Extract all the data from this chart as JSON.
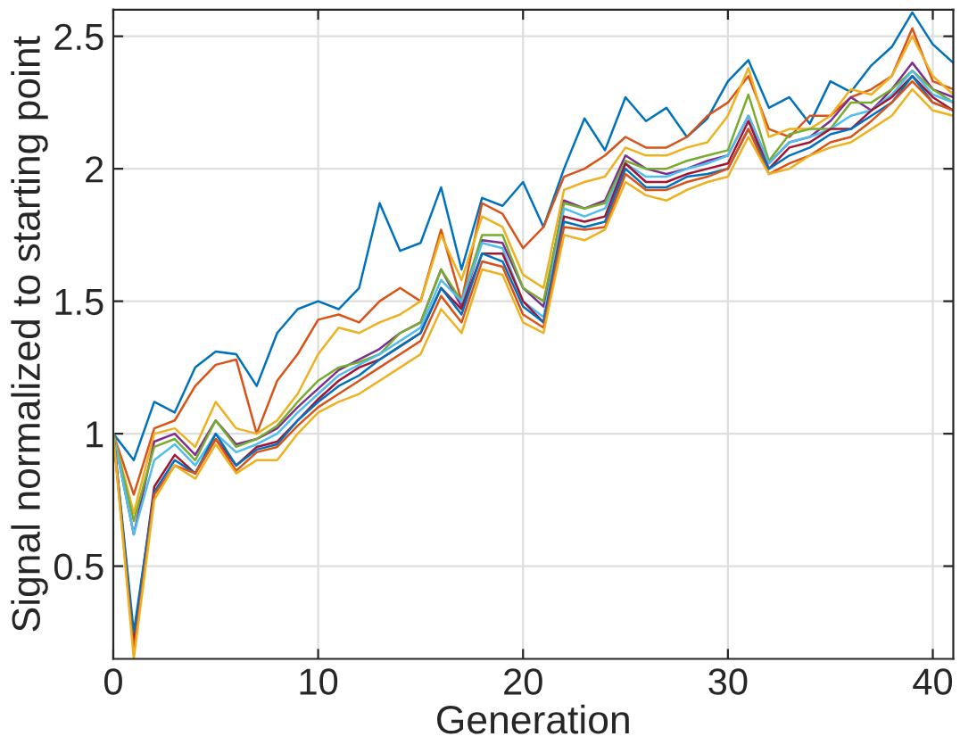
{
  "chart_data": {
    "type": "line",
    "xlabel": "Generation",
    "ylabel": "Signal normalized to starting point",
    "x": [
      0,
      1,
      2,
      3,
      4,
      5,
      6,
      7,
      8,
      9,
      10,
      11,
      12,
      13,
      14,
      15,
      16,
      17,
      18,
      19,
      20,
      21,
      22,
      23,
      24,
      25,
      26,
      27,
      28,
      29,
      30,
      31,
      32,
      33,
      34,
      35,
      36,
      37,
      38,
      39,
      40,
      41
    ],
    "xlim": [
      0,
      41
    ],
    "ylim": [
      0.15,
      2.6
    ],
    "xticks": [
      0,
      10,
      20,
      30,
      40
    ],
    "yticks": [
      0.5,
      1,
      1.5,
      2,
      2.5
    ],
    "grid": true,
    "marker": "none",
    "line_style": "solid",
    "series": [
      {
        "color": "#0072bd",
        "values": [
          1.0,
          0.9,
          1.12,
          1.08,
          1.25,
          1.31,
          1.3,
          1.18,
          1.38,
          1.47,
          1.5,
          1.47,
          1.55,
          1.87,
          1.69,
          1.72,
          1.93,
          1.62,
          1.89,
          1.86,
          1.95,
          1.78,
          2.0,
          2.19,
          2.07,
          2.27,
          2.18,
          2.23,
          2.12,
          2.19,
          2.33,
          2.41,
          2.23,
          2.27,
          2.17,
          2.33,
          2.29,
          2.39,
          2.46,
          2.59,
          2.47,
          2.4
        ]
      },
      {
        "color": "#d95319",
        "values": [
          1.0,
          0.77,
          1.02,
          1.05,
          1.18,
          1.26,
          1.28,
          1.0,
          1.2,
          1.3,
          1.43,
          1.45,
          1.42,
          1.5,
          1.55,
          1.5,
          1.77,
          1.5,
          1.87,
          1.83,
          1.7,
          1.78,
          1.97,
          2.0,
          2.05,
          2.12,
          2.08,
          2.08,
          2.12,
          2.2,
          2.25,
          2.35,
          2.15,
          2.12,
          2.2,
          2.2,
          2.27,
          2.3,
          2.35,
          2.53,
          2.33,
          2.3
        ]
      },
      {
        "color": "#edb120",
        "values": [
          1.0,
          0.7,
          1.0,
          1.02,
          0.95,
          1.12,
          1.02,
          1.0,
          1.05,
          1.15,
          1.3,
          1.4,
          1.38,
          1.42,
          1.45,
          1.5,
          1.75,
          1.58,
          1.82,
          1.78,
          1.6,
          1.55,
          1.92,
          1.95,
          1.97,
          2.08,
          2.05,
          2.05,
          2.08,
          2.1,
          2.2,
          2.38,
          2.12,
          2.15,
          2.15,
          2.2,
          2.3,
          2.28,
          2.35,
          2.5,
          2.35,
          2.28
        ]
      },
      {
        "color": "#7e2f8e",
        "values": [
          1.0,
          0.62,
          0.97,
          1.0,
          0.92,
          1.05,
          0.96,
          0.98,
          1.02,
          1.1,
          1.17,
          1.24,
          1.28,
          1.32,
          1.38,
          1.42,
          1.62,
          1.48,
          1.73,
          1.72,
          1.55,
          1.48,
          1.88,
          1.85,
          1.88,
          2.05,
          2.0,
          1.98,
          2.0,
          2.03,
          2.05,
          2.2,
          2.02,
          2.1,
          2.12,
          2.18,
          2.27,
          2.22,
          2.3,
          2.4,
          2.3,
          2.27
        ]
      },
      {
        "color": "#77ac30",
        "values": [
          1.0,
          0.67,
          0.95,
          0.98,
          0.9,
          1.05,
          0.95,
          0.98,
          1.03,
          1.12,
          1.2,
          1.25,
          1.27,
          1.3,
          1.38,
          1.42,
          1.62,
          1.5,
          1.75,
          1.75,
          1.55,
          1.5,
          1.87,
          1.85,
          1.87,
          2.03,
          2.0,
          2.0,
          2.03,
          2.05,
          2.07,
          2.28,
          2.03,
          2.13,
          2.15,
          2.15,
          2.25,
          2.25,
          2.3,
          2.37,
          2.3,
          2.25
        ]
      },
      {
        "color": "#4dbeee",
        "values": [
          1.0,
          0.62,
          0.9,
          0.96,
          0.88,
          1.0,
          0.93,
          0.96,
          1.0,
          1.08,
          1.15,
          1.22,
          1.26,
          1.3,
          1.35,
          1.4,
          1.58,
          1.5,
          1.72,
          1.7,
          1.5,
          1.44,
          1.85,
          1.82,
          1.85,
          2.02,
          1.97,
          1.97,
          2.0,
          2.02,
          2.05,
          2.2,
          2.02,
          2.1,
          2.12,
          2.15,
          2.2,
          2.22,
          2.28,
          2.37,
          2.28,
          2.25
        ]
      },
      {
        "color": "#a2142f",
        "values": [
          1.0,
          0.22,
          0.8,
          0.92,
          0.85,
          0.98,
          0.88,
          0.95,
          0.97,
          1.05,
          1.13,
          1.2,
          1.25,
          1.28,
          1.33,
          1.38,
          1.55,
          1.47,
          1.68,
          1.68,
          1.5,
          1.42,
          1.82,
          1.8,
          1.82,
          2.02,
          1.95,
          1.95,
          1.98,
          2.0,
          2.02,
          2.18,
          2.0,
          2.08,
          2.1,
          2.15,
          2.15,
          2.22,
          2.27,
          2.35,
          2.27,
          2.22
        ]
      },
      {
        "color": "#0072bd",
        "values": [
          1.0,
          0.25,
          0.78,
          0.9,
          0.85,
          1.0,
          0.88,
          0.94,
          0.96,
          1.05,
          1.12,
          1.18,
          1.22,
          1.28,
          1.33,
          1.38,
          1.55,
          1.45,
          1.68,
          1.65,
          1.48,
          1.42,
          1.8,
          1.78,
          1.8,
          2.0,
          1.93,
          1.93,
          1.97,
          1.98,
          2.0,
          2.15,
          2.0,
          2.05,
          2.08,
          2.13,
          2.15,
          2.2,
          2.25,
          2.35,
          2.25,
          2.22
        ]
      },
      {
        "color": "#d95319",
        "values": [
          1.0,
          0.18,
          0.77,
          0.88,
          0.85,
          0.98,
          0.86,
          0.93,
          0.95,
          1.03,
          1.1,
          1.15,
          1.2,
          1.25,
          1.3,
          1.35,
          1.52,
          1.42,
          1.65,
          1.63,
          1.45,
          1.4,
          1.78,
          1.77,
          1.78,
          1.98,
          1.92,
          1.92,
          1.95,
          1.97,
          2.0,
          2.15,
          1.98,
          2.02,
          2.05,
          2.1,
          2.12,
          2.18,
          2.25,
          2.33,
          2.25,
          2.22
        ]
      },
      {
        "color": "#edb120",
        "values": [
          1.0,
          0.15,
          0.75,
          0.88,
          0.83,
          0.96,
          0.85,
          0.9,
          0.9,
          1.0,
          1.08,
          1.12,
          1.15,
          1.2,
          1.25,
          1.3,
          1.47,
          1.38,
          1.62,
          1.6,
          1.42,
          1.38,
          1.75,
          1.73,
          1.77,
          1.95,
          1.9,
          1.88,
          1.92,
          1.95,
          1.97,
          2.12,
          1.98,
          2.0,
          2.05,
          2.08,
          2.1,
          2.15,
          2.2,
          2.3,
          2.22,
          2.2
        ]
      }
    ]
  }
}
